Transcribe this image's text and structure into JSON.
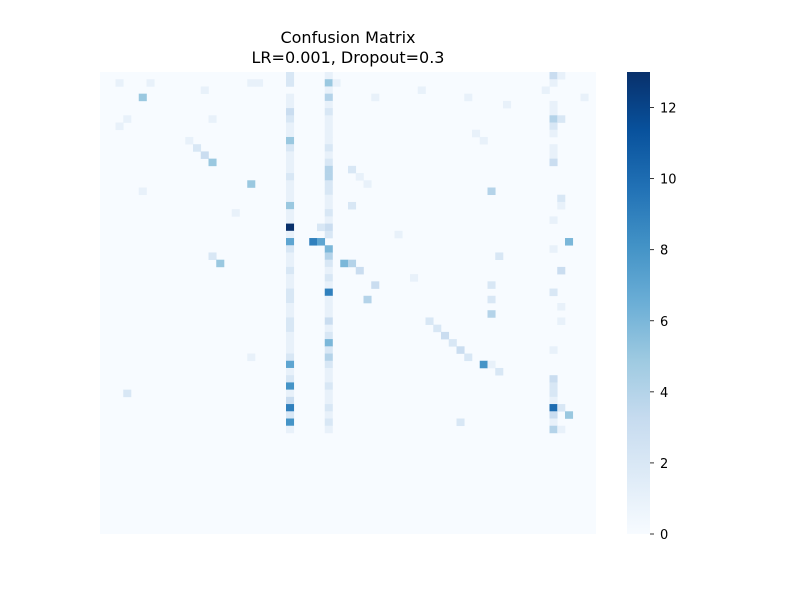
{
  "chart_data": {
    "type": "heatmap",
    "title_lines": [
      "Confusion Matrix",
      "LR=0.001, Dropout=0.3"
    ],
    "xlabel": "",
    "ylabel": "",
    "colormap": "Blues",
    "matrix_size": 64,
    "value_range": [
      0,
      13
    ],
    "colorbar": {
      "ticks": [
        0,
        2,
        4,
        6,
        8,
        10,
        12
      ],
      "tick_labels": [
        "0",
        "2",
        "4",
        "6",
        "8",
        "10",
        "12"
      ]
    },
    "cells": [
      [
        0,
        24,
        2
      ],
      [
        0,
        29,
        1
      ],
      [
        0,
        58,
        3
      ],
      [
        0,
        59,
        1
      ],
      [
        1,
        2,
        1
      ],
      [
        1,
        6,
        1
      ],
      [
        1,
        19,
        1
      ],
      [
        1,
        20,
        1
      ],
      [
        1,
        24,
        2
      ],
      [
        1,
        29,
        5
      ],
      [
        1,
        30,
        1
      ],
      [
        1,
        58,
        1
      ],
      [
        2,
        13,
        1
      ],
      [
        2,
        29,
        1
      ],
      [
        2,
        41,
        1
      ],
      [
        2,
        57,
        1
      ],
      [
        3,
        5,
        5
      ],
      [
        3,
        24,
        1
      ],
      [
        3,
        29,
        4
      ],
      [
        3,
        35,
        1
      ],
      [
        3,
        47,
        1
      ],
      [
        3,
        62,
        1
      ],
      [
        4,
        24,
        1
      ],
      [
        4,
        29,
        1
      ],
      [
        4,
        52,
        1
      ],
      [
        4,
        58,
        1
      ],
      [
        5,
        24,
        3
      ],
      [
        5,
        29,
        2
      ],
      [
        5,
        58,
        1
      ],
      [
        6,
        3,
        1
      ],
      [
        6,
        14,
        1
      ],
      [
        6,
        24,
        2
      ],
      [
        6,
        29,
        1
      ],
      [
        6,
        58,
        4
      ],
      [
        6,
        59,
        2
      ],
      [
        7,
        2,
        1
      ],
      [
        7,
        24,
        1
      ],
      [
        7,
        29,
        1
      ],
      [
        7,
        58,
        2
      ],
      [
        8,
        24,
        1
      ],
      [
        8,
        29,
        1
      ],
      [
        8,
        48,
        1
      ],
      [
        8,
        58,
        1
      ],
      [
        9,
        11,
        1
      ],
      [
        9,
        24,
        5
      ],
      [
        9,
        29,
        1
      ],
      [
        9,
        49,
        1
      ],
      [
        10,
        12,
        2
      ],
      [
        10,
        24,
        2
      ],
      [
        10,
        29,
        2
      ],
      [
        10,
        58,
        1
      ],
      [
        11,
        13,
        3
      ],
      [
        11,
        24,
        1
      ],
      [
        11,
        29,
        1
      ],
      [
        11,
        58,
        1
      ],
      [
        12,
        14,
        5
      ],
      [
        12,
        24,
        1
      ],
      [
        12,
        29,
        2
      ],
      [
        12,
        58,
        3
      ],
      [
        13,
        24,
        1
      ],
      [
        13,
        29,
        4
      ],
      [
        13,
        32,
        2
      ],
      [
        14,
        24,
        2
      ],
      [
        14,
        29,
        4
      ],
      [
        14,
        33,
        1
      ],
      [
        15,
        19,
        5
      ],
      [
        15,
        24,
        1
      ],
      [
        15,
        29,
        2
      ],
      [
        15,
        34,
        1
      ],
      [
        16,
        5,
        1
      ],
      [
        16,
        24,
        1
      ],
      [
        16,
        29,
        2
      ],
      [
        16,
        50,
        4
      ],
      [
        17,
        24,
        1
      ],
      [
        17,
        29,
        1
      ],
      [
        17,
        59,
        2
      ],
      [
        18,
        24,
        5
      ],
      [
        18,
        29,
        1
      ],
      [
        18,
        32,
        2
      ],
      [
        18,
        59,
        1
      ],
      [
        19,
        17,
        1
      ],
      [
        19,
        24,
        1
      ],
      [
        19,
        29,
        2
      ],
      [
        20,
        24,
        1
      ],
      [
        20,
        29,
        1
      ],
      [
        20,
        58,
        1
      ],
      [
        21,
        24,
        13
      ],
      [
        21,
        29,
        3
      ],
      [
        21,
        28,
        2
      ],
      [
        22,
        24,
        1
      ],
      [
        22,
        29,
        2
      ],
      [
        22,
        38,
        1
      ],
      [
        23,
        24,
        7
      ],
      [
        23,
        27,
        9
      ],
      [
        23,
        28,
        7
      ],
      [
        23,
        60,
        6
      ],
      [
        24,
        24,
        2
      ],
      [
        24,
        29,
        6
      ],
      [
        24,
        58,
        1
      ],
      [
        25,
        14,
        2
      ],
      [
        25,
        24,
        1
      ],
      [
        25,
        29,
        4
      ],
      [
        25,
        51,
        2
      ],
      [
        26,
        15,
        5
      ],
      [
        26,
        24,
        1
      ],
      [
        26,
        29,
        2
      ],
      [
        26,
        31,
        6
      ],
      [
        26,
        32,
        4
      ],
      [
        27,
        24,
        2
      ],
      [
        27,
        29,
        1
      ],
      [
        27,
        33,
        3
      ],
      [
        27,
        59,
        3
      ],
      [
        28,
        24,
        1
      ],
      [
        28,
        29,
        2
      ],
      [
        28,
        40,
        1
      ],
      [
        29,
        24,
        1
      ],
      [
        29,
        29,
        1
      ],
      [
        29,
        35,
        3
      ],
      [
        29,
        50,
        2
      ],
      [
        30,
        24,
        2
      ],
      [
        30,
        29,
        9
      ],
      [
        30,
        58,
        2
      ],
      [
        31,
        24,
        2
      ],
      [
        31,
        29,
        1
      ],
      [
        31,
        34,
        4
      ],
      [
        31,
        50,
        2
      ],
      [
        32,
        24,
        1
      ],
      [
        32,
        29,
        1
      ],
      [
        32,
        59,
        1
      ],
      [
        33,
        24,
        1
      ],
      [
        33,
        29,
        1
      ],
      [
        33,
        50,
        4
      ],
      [
        34,
        24,
        2
      ],
      [
        34,
        29,
        3
      ],
      [
        34,
        42,
        2
      ],
      [
        34,
        59,
        1
      ],
      [
        35,
        24,
        2
      ],
      [
        35,
        29,
        1
      ],
      [
        35,
        43,
        2
      ],
      [
        36,
        24,
        1
      ],
      [
        36,
        29,
        2
      ],
      [
        36,
        44,
        3
      ],
      [
        37,
        24,
        1
      ],
      [
        37,
        29,
        6
      ],
      [
        37,
        45,
        2
      ],
      [
        38,
        24,
        1
      ],
      [
        38,
        29,
        2
      ],
      [
        38,
        46,
        3
      ],
      [
        38,
        58,
        1
      ],
      [
        39,
        19,
        1
      ],
      [
        39,
        24,
        2
      ],
      [
        39,
        29,
        4
      ],
      [
        39,
        47,
        2
      ],
      [
        40,
        24,
        7
      ],
      [
        40,
        29,
        2
      ],
      [
        40,
        49,
        8
      ],
      [
        40,
        50,
        1
      ],
      [
        41,
        24,
        1
      ],
      [
        41,
        29,
        1
      ],
      [
        41,
        51,
        2
      ],
      [
        42,
        24,
        2
      ],
      [
        42,
        29,
        1
      ],
      [
        42,
        58,
        3
      ],
      [
        43,
        24,
        8
      ],
      [
        43,
        29,
        2
      ],
      [
        43,
        58,
        2
      ],
      [
        44,
        3,
        2
      ],
      [
        44,
        24,
        1
      ],
      [
        44,
        29,
        1
      ],
      [
        44,
        58,
        2
      ],
      [
        45,
        24,
        3
      ],
      [
        45,
        29,
        1
      ],
      [
        45,
        58,
        1
      ],
      [
        46,
        24,
        9
      ],
      [
        46,
        29,
        2
      ],
      [
        46,
        58,
        10
      ],
      [
        46,
        59,
        2
      ],
      [
        47,
        24,
        2
      ],
      [
        47,
        29,
        1
      ],
      [
        47,
        58,
        3
      ],
      [
        47,
        60,
        5
      ],
      [
        48,
        24,
        8
      ],
      [
        48,
        29,
        2
      ],
      [
        48,
        46,
        2
      ],
      [
        48,
        58,
        1
      ],
      [
        49,
        24,
        1
      ],
      [
        49,
        29,
        1
      ],
      [
        49,
        58,
        4
      ],
      [
        49,
        59,
        1
      ]
    ]
  }
}
